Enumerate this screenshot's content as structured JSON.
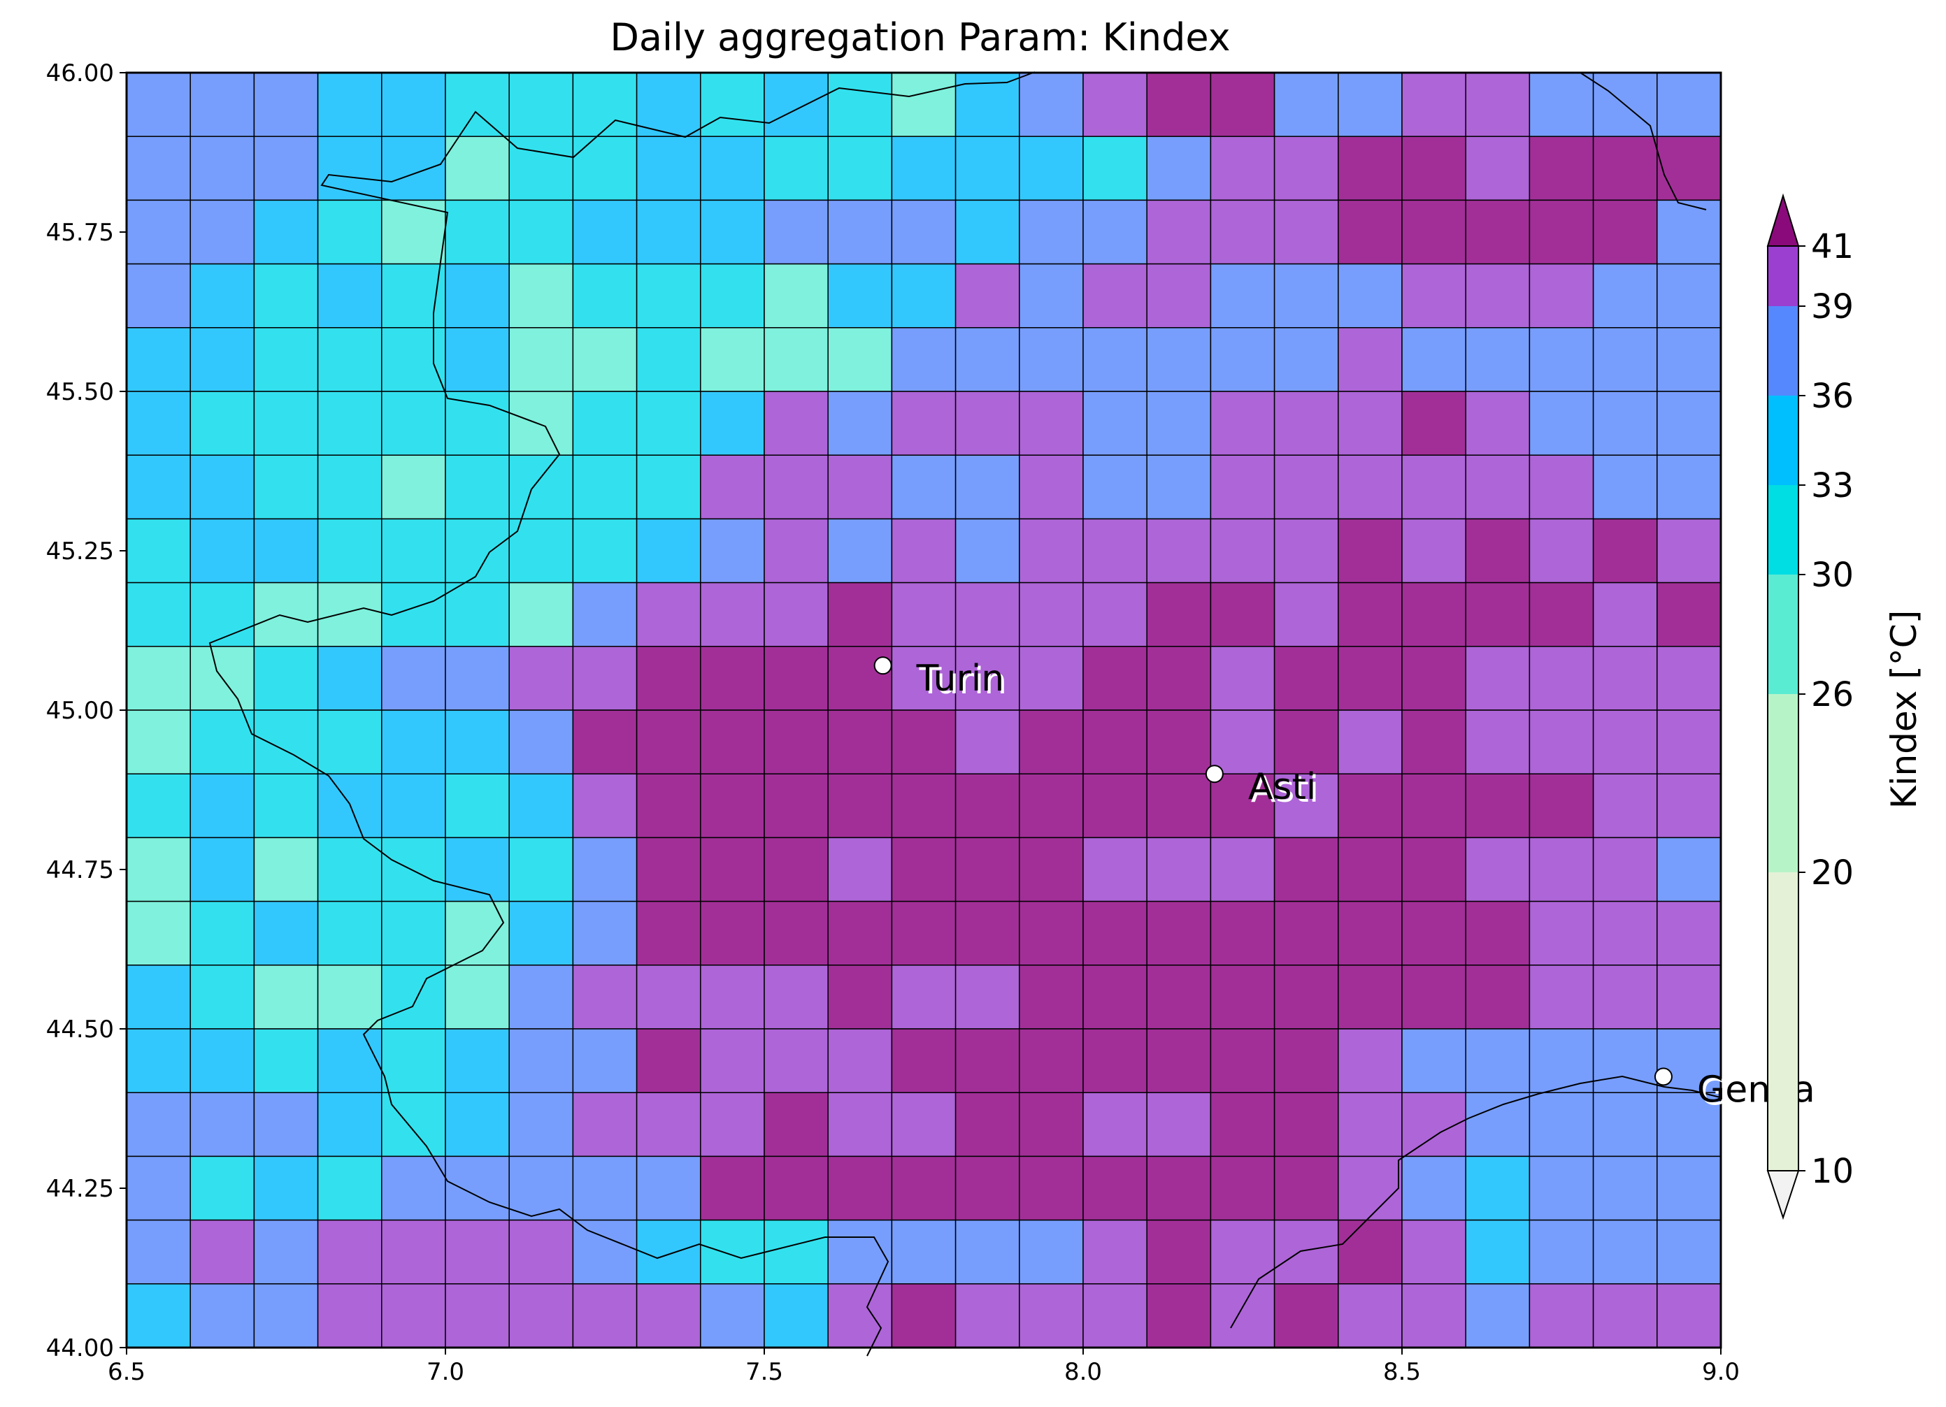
{
  "title": "Daily aggregation Param: Kindex",
  "colorbar": {
    "label": "Kindex [°C]",
    "ticks": [
      "41",
      "39",
      "36",
      "33",
      "30",
      "26",
      "20",
      "10"
    ],
    "bands": [
      {
        "from": 10,
        "to": 20,
        "color": "#e4f1d6"
      },
      {
        "from": 20,
        "to": 26,
        "color": "#b6f4c8"
      },
      {
        "from": 26,
        "to": 30,
        "color": "#5aebd3"
      },
      {
        "from": 30,
        "to": 33,
        "color": "#00dde3"
      },
      {
        "from": 33,
        "to": 36,
        "color": "#00bfff"
      },
      {
        "from": 36,
        "to": 39,
        "color": "#5588ff"
      },
      {
        "from": 39,
        "to": 41,
        "color": "#9a3fd0"
      }
    ],
    "over_color": "#8b0a7b",
    "under_color": "#f2f2f2"
  },
  "chart_data": {
    "type": "heatmap",
    "title": "Daily aggregation Param: Kindex",
    "colorbar_label": "Kindex [°C]",
    "x_ticks": [
      "6.5",
      "7.0",
      "7.5",
      "8.0",
      "8.5",
      "9.0"
    ],
    "y_ticks": [
      "46.00",
      "45.75",
      "45.50",
      "45.25",
      "45.00",
      "44.75",
      "44.50",
      "44.25",
      "44.00"
    ],
    "xlim": [
      6.5,
      9.0
    ],
    "ylim": [
      44.0,
      46.0
    ],
    "cell_size_deg": 0.1,
    "row_order": "north-to-south (first row = 45.9–46.0)",
    "palette": {
      "T": "#7ff1dc",
      "C": "#33e1ee",
      "S": "#33c8fd",
      "B": "#779efd",
      "V": "#ae65d8",
      "P": "#a22f98"
    },
    "palette_meaning": {
      "T": "26–30 °C",
      "C": "30–33 °C",
      "S": "33–36 °C",
      "B": "36–39 °C",
      "V": "39–41 °C",
      "P": "> 41 °C"
    },
    "rows": [
      "BBBSSCCCSCSCTSBVPPBBVVB",
      "BBBSSTCCSSCCSSSCBVVPPVPPPV",
      "BBSCTCCSSSBBBSBBVVVPPPPPB",
      "BSCSCSTCCCTSSVBVVBBBVVVBBV",
      "SSCCCSTTCTTTBBBBBBBVBBBBBB",
      "SCCCCCTCCSVBVVVBBVVVPVBBBB",
      "SSCCTCCCCVVVBBVBBVVVVVVBBV",
      "CSSCCCCCSBVBVBVVVVVPVPVPV",
      "CCTTCCTBVVVPVVVVPPVPPPPVP",
      "TTCSBBVVPPPPVVVPPVPPPVVVVV",
      "TCCCSSBPPPPPPVPPPVPVPVVVV",
      "CSCSSCSVPPPPPPPPPPVPPPPVVP",
      "TSTCCSCBPPPVPPPVVVPPPVVVB",
      "TCSCCTSBPPPPPPPPPPPPPPVV",
      "SCTTCTBVVVVPVVPPPPPPPPVV",
      "SSCSCSBBPVVVPPPPPPPVBBB",
      "BBBSCSBVVVPVVPPVVPPVVBBB",
      "BCSCBBBBBPPPPPPPPPPVBSBB",
      "BVBVVVVBSCCBBBBVPVVPVSBB",
      "SBBVVVVVVBSVPVVVPVPVVBVVVV"
    ],
    "cities": [
      {
        "name": "Turin",
        "lon": 7.686,
        "lat": 45.07
      },
      {
        "name": "Asti",
        "lon": 8.206,
        "lat": 44.9
      },
      {
        "name": "Genoa",
        "lon": 8.91,
        "lat": 44.425,
        "label_shown": "Genoa"
      }
    ]
  }
}
